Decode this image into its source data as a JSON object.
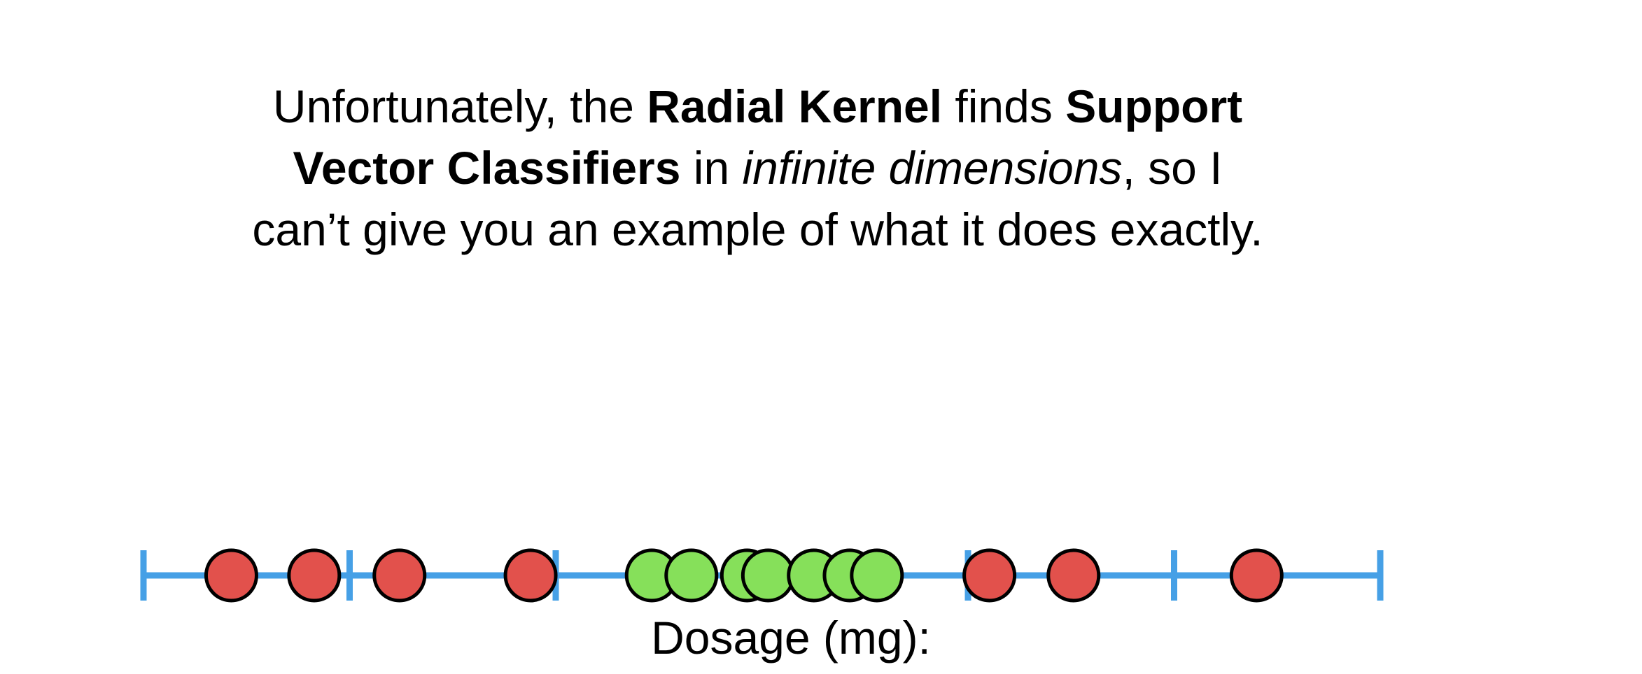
{
  "caption": {
    "line1": {
      "t1": "Unfortunately, the ",
      "b1": "Radial Kernel",
      "t2": " finds ",
      "b2": "Support"
    },
    "line2": {
      "b1": "Vector Classifiers",
      "t1": " in ",
      "i1": "infinite dimensions",
      "t2": ", so I"
    },
    "line3": {
      "t1": "can’t give you an example of what it does exactly."
    }
  },
  "axis": {
    "label": "Dosage (mg):",
    "line_color": "#46a0e6",
    "tick_count": 7
  },
  "colors": {
    "red_point": "#e2514c",
    "green_point": "#86e05a",
    "outline": "#000000"
  },
  "points": [
    {
      "pos": 0.071,
      "class": "red"
    },
    {
      "pos": 0.138,
      "class": "red"
    },
    {
      "pos": 0.207,
      "class": "red"
    },
    {
      "pos": 0.313,
      "class": "red"
    },
    {
      "pos": 0.411,
      "class": "green"
    },
    {
      "pos": 0.443,
      "class": "green"
    },
    {
      "pos": 0.488,
      "class": "green"
    },
    {
      "pos": 0.505,
      "class": "green"
    },
    {
      "pos": 0.542,
      "class": "green"
    },
    {
      "pos": 0.571,
      "class": "green"
    },
    {
      "pos": 0.593,
      "class": "green"
    },
    {
      "pos": 0.684,
      "class": "red"
    },
    {
      "pos": 0.752,
      "class": "red"
    },
    {
      "pos": 0.9,
      "class": "red"
    }
  ]
}
